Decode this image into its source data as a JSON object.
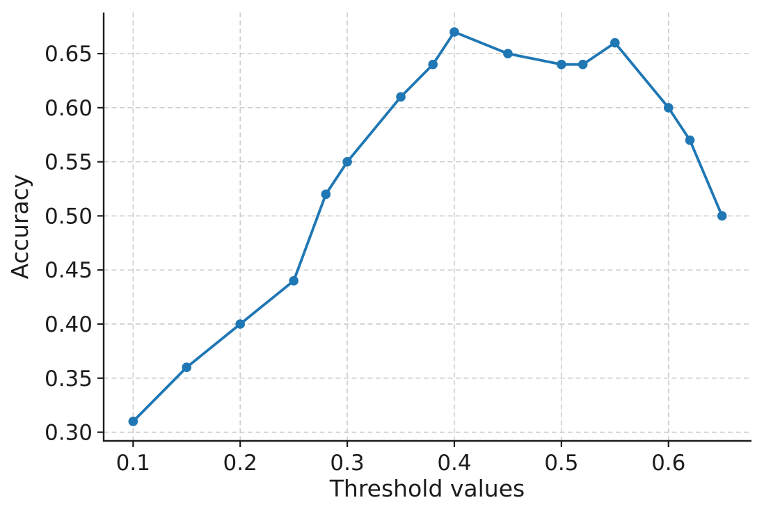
{
  "chart_data": {
    "type": "line",
    "title": "",
    "xlabel": "Threshold values",
    "ylabel": "Accuracy",
    "x": [
      0.1,
      0.15,
      0.2,
      0.25,
      0.28,
      0.3,
      0.35,
      0.38,
      0.4,
      0.45,
      0.5,
      0.52,
      0.55,
      0.6,
      0.62,
      0.65
    ],
    "y": [
      0.31,
      0.36,
      0.4,
      0.44,
      0.52,
      0.55,
      0.61,
      0.64,
      0.67,
      0.65,
      0.64,
      0.64,
      0.66,
      0.6,
      0.57,
      0.5
    ],
    "xlim": [
      0.0725,
      0.6775
    ],
    "ylim": [
      0.292,
      0.688
    ],
    "xticks": [
      0.1,
      0.2,
      0.3,
      0.4,
      0.5,
      0.6
    ],
    "xtick_labels": [
      "0.1",
      "0.2",
      "0.3",
      "0.4",
      "0.5",
      "0.6"
    ],
    "yticks": [
      0.3,
      0.35,
      0.4,
      0.45,
      0.5,
      0.55,
      0.6,
      0.65
    ],
    "ytick_labels": [
      "0.30",
      "0.35",
      "0.40",
      "0.45",
      "0.50",
      "0.55",
      "0.60",
      "0.65"
    ],
    "grid": true,
    "grid_style": "dashed",
    "legend": false,
    "marker": "circle",
    "colors": {
      "line": "#1f77b4",
      "marker": "#1f77b4",
      "grid": "#c9c9c9",
      "axis": "#1c1c1c",
      "background": "#ffffff"
    }
  }
}
